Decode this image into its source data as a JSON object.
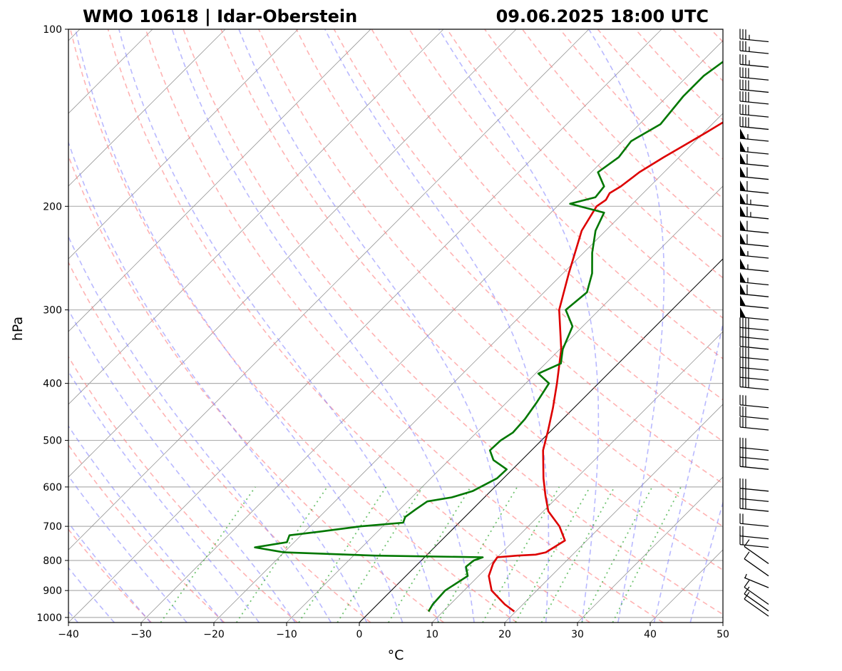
{
  "chart_data": {
    "type": "line",
    "subtype": "skew-T log-p sounding",
    "title_left": "WMO 10618 | Idar-Oberstein",
    "title_right": "09.06.2025 18:00 UTC",
    "xlabel": "°C",
    "ylabel": "hPa",
    "xlim": [
      -40,
      50
    ],
    "ylim": [
      1020,
      100
    ],
    "y_scale": "log",
    "x_ticks": [
      -40,
      -30,
      -20,
      -10,
      0,
      10,
      20,
      30,
      40,
      50
    ],
    "x_tick_labels": [
      "−40",
      "−30",
      "−20",
      "−10",
      "0",
      "10",
      "20",
      "30",
      "40",
      "50"
    ],
    "y_ticks": [
      1000,
      900,
      800,
      700,
      600,
      500,
      400,
      300,
      200,
      100
    ],
    "y_tick_labels": [
      "1000",
      "900",
      "800",
      "700",
      "600",
      "500",
      "400",
      "300",
      "200",
      "100"
    ],
    "grid": true,
    "colors": {
      "temperature": "#dd0000",
      "dewpoint": "#007700",
      "dry_adiabat": "#ff8080",
      "moist_adiabat": "#8080ff",
      "mixing_ratio": "#33aa33",
      "isotherm": "#777777",
      "zero_isotherm": "#000000"
    },
    "series": [
      {
        "name": "Temperature",
        "values": [
          [
            977,
            19.8
          ],
          [
            950,
            17.5
          ],
          [
            900,
            13.8
          ],
          [
            850,
            11.4
          ],
          [
            810,
            10.3
          ],
          [
            790,
            10.0
          ],
          [
            785,
            12.5
          ],
          [
            782,
            14.9
          ],
          [
            775,
            16.0
          ],
          [
            740,
            17.0
          ],
          [
            700,
            14.3
          ],
          [
            660,
            10.7
          ],
          [
            620,
            8.1
          ],
          [
            580,
            5.5
          ],
          [
            520,
            1.6
          ],
          [
            480,
            -0.5
          ],
          [
            440,
            -2.9
          ],
          [
            400,
            -5.7
          ],
          [
            350,
            -9.8
          ],
          [
            300,
            -15.5
          ],
          [
            260,
            -19.2
          ],
          [
            220,
            -23.3
          ],
          [
            200,
            -24.6
          ],
          [
            195,
            -24.2
          ],
          [
            190,
            -24.6
          ],
          [
            185,
            -24.0
          ],
          [
            175,
            -23.4
          ],
          [
            165,
            -22.1
          ],
          [
            158,
            -21.0
          ],
          [
            150,
            -19.7
          ],
          [
            140,
            -18.1
          ],
          [
            130,
            -15.7
          ],
          [
            120,
            -13.2
          ],
          [
            112,
            -11.8
          ],
          [
            104,
            -11.1
          ],
          [
            100,
            -9.5
          ]
        ]
      },
      {
        "name": "Dewpoint",
        "values": [
          [
            977,
            8.0
          ],
          [
            950,
            7.6
          ],
          [
            900,
            7.4
          ],
          [
            850,
            8.5
          ],
          [
            820,
            7.0
          ],
          [
            800,
            7.2
          ],
          [
            790,
            8.0
          ],
          [
            785,
            -7.0
          ],
          [
            775,
            -20.0
          ],
          [
            760,
            -24.7
          ],
          [
            745,
            -21.0
          ],
          [
            725,
            -21.6
          ],
          [
            715,
            -18.0
          ],
          [
            700,
            -13.0
          ],
          [
            690,
            -7.7
          ],
          [
            675,
            -8.2
          ],
          [
            655,
            -7.8
          ],
          [
            635,
            -7.3
          ],
          [
            625,
            -4.5
          ],
          [
            610,
            -2.5
          ],
          [
            580,
            -0.9
          ],
          [
            560,
            -0.8
          ],
          [
            540,
            -3.9
          ],
          [
            520,
            -5.7
          ],
          [
            500,
            -5.6
          ],
          [
            485,
            -5.0
          ],
          [
            460,
            -5.2
          ],
          [
            430,
            -5.9
          ],
          [
            400,
            -6.8
          ],
          [
            385,
            -9.6
          ],
          [
            370,
            -7.9
          ],
          [
            350,
            -9.6
          ],
          [
            320,
            -11.4
          ],
          [
            300,
            -14.6
          ],
          [
            280,
            -14.1
          ],
          [
            260,
            -16.0
          ],
          [
            240,
            -18.8
          ],
          [
            220,
            -21.4
          ],
          [
            205,
            -22.7
          ],
          [
            198,
            -28.6
          ],
          [
            193,
            -26.0
          ],
          [
            185,
            -26.3
          ],
          [
            175,
            -29.1
          ],
          [
            165,
            -28.3
          ],
          [
            155,
            -28.8
          ],
          [
            145,
            -27.1
          ],
          [
            130,
            -27.8
          ],
          [
            120,
            -27.8
          ],
          [
            112,
            -26.9
          ],
          [
            104,
            -25.5
          ],
          [
            100,
            -25.2
          ]
        ]
      }
    ],
    "wind_barbs": [
      {
        "p": 995,
        "ws": 10
      },
      {
        "p": 975,
        "ws": 10
      },
      {
        "p": 950,
        "ws": 10
      },
      {
        "p": 890,
        "ws": 5
      },
      {
        "p": 850,
        "ws": 10
      },
      {
        "p": 810,
        "ws": 10
      },
      {
        "p": 760,
        "ws": 20
      },
      {
        "p": 735,
        "ws": 20
      },
      {
        "p": 700,
        "ws": 20
      },
      {
        "p": 660,
        "ws": 30
      },
      {
        "p": 635,
        "ws": 30
      },
      {
        "p": 610,
        "ws": 30
      },
      {
        "p": 560,
        "ws": 30
      },
      {
        "p": 540,
        "ws": 30
      },
      {
        "p": 520,
        "ws": 30
      },
      {
        "p": 480,
        "ws": 30
      },
      {
        "p": 460,
        "ws": 30
      },
      {
        "p": 440,
        "ws": 30
      },
      {
        "p": 410,
        "ws": 40
      },
      {
        "p": 395,
        "ws": 40
      },
      {
        "p": 380,
        "ws": 40
      },
      {
        "p": 365,
        "ws": 40
      },
      {
        "p": 350,
        "ws": 40
      },
      {
        "p": 337,
        "ws": 40
      },
      {
        "p": 325,
        "ws": 40
      },
      {
        "p": 312,
        "ws": 50
      },
      {
        "p": 298,
        "ws": 50
      },
      {
        "p": 285,
        "ws": 60
      },
      {
        "p": 272,
        "ws": 55
      },
      {
        "p": 258,
        "ws": 55
      },
      {
        "p": 245,
        "ws": 55
      },
      {
        "p": 234,
        "ws": 60
      },
      {
        "p": 222,
        "ws": 60
      },
      {
        "p": 210,
        "ws": 65
      },
      {
        "p": 200,
        "ws": 65
      },
      {
        "p": 190,
        "ws": 60
      },
      {
        "p": 180,
        "ws": 60
      },
      {
        "p": 171,
        "ws": 60
      },
      {
        "p": 163,
        "ws": 55
      },
      {
        "p": 155,
        "ws": 55
      },
      {
        "p": 148,
        "ws": 40
      },
      {
        "p": 141,
        "ws": 40
      },
      {
        "p": 134,
        "ws": 40
      },
      {
        "p": 128,
        "ws": 40
      },
      {
        "p": 122,
        "ws": 40
      },
      {
        "p": 116,
        "ws": 35
      },
      {
        "p": 110,
        "ws": 35
      },
      {
        "p": 105,
        "ws": 35
      }
    ]
  }
}
